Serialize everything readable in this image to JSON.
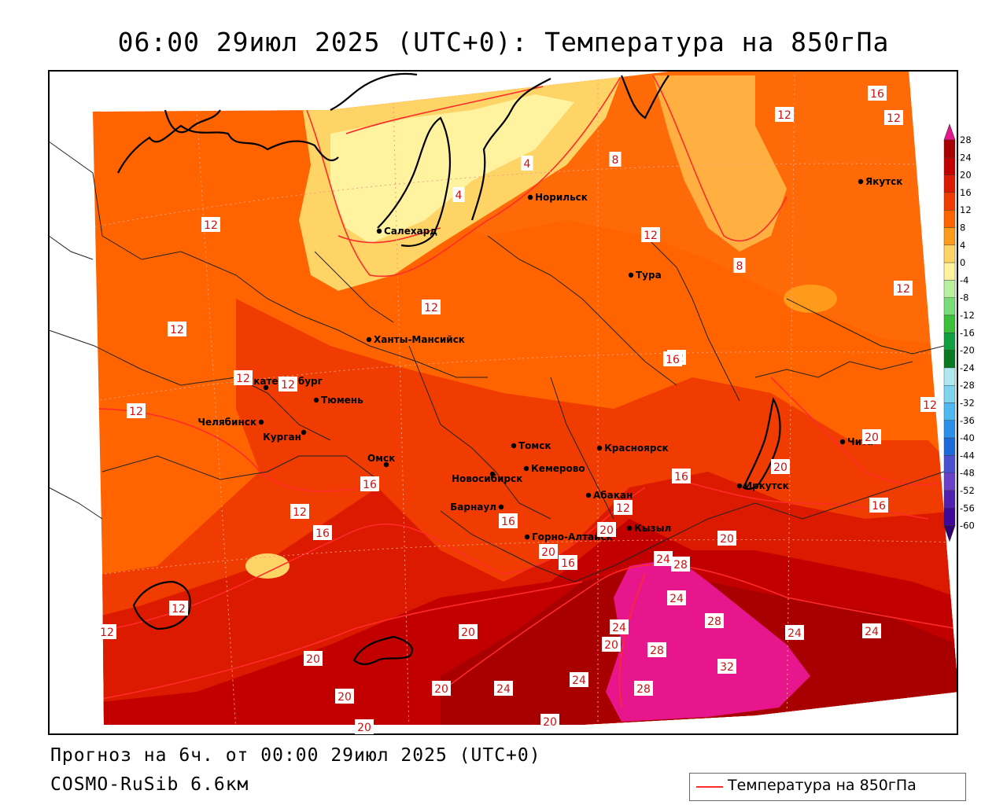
{
  "title": "06:00 29июл 2025 (UTC+0): Температура на 850гПа",
  "footer": {
    "forecast": "Прогноз на 6ч. от 00:00 29июл 2025 (UTC+0)",
    "model": "COSMO-RuSib 6.6км"
  },
  "legend": {
    "line_label": "Температура на 850гПа",
    "line_color": "#ff2a2a"
  },
  "colorbar": {
    "ticks": [
      "28",
      "24",
      "20",
      "16",
      "12",
      "8",
      "4",
      "0",
      "-4",
      "-8",
      "-12",
      "-16",
      "-20",
      "-24",
      "-28",
      "-32",
      "-36",
      "-40",
      "-44",
      "-48",
      "-52",
      "-56",
      "-60"
    ],
    "colors": [
      "#e8168c",
      "#a80000",
      "#c20000",
      "#dc1a00",
      "#f03c00",
      "#ff6400",
      "#ff9a1a",
      "#ffd466",
      "#fff3a0",
      "#b8f0a0",
      "#78dc78",
      "#3cc03c",
      "#10a040",
      "#0a7a20",
      "#b0e8f0",
      "#80d4f0",
      "#50b8f0",
      "#2c90e8",
      "#1c6cd8",
      "#4a50d0",
      "#6a40c8",
      "#5020b0",
      "#400898",
      "#300070"
    ]
  },
  "cities": [
    {
      "name": "Салехард"
    },
    {
      "name": "Норильск"
    },
    {
      "name": "Якутск"
    },
    {
      "name": "Тура"
    },
    {
      "name": "Ханты-Мансийск"
    },
    {
      "name": "Екатеринбург"
    },
    {
      "name": "Тюмень"
    },
    {
      "name": "Челябинск"
    },
    {
      "name": "Курган"
    },
    {
      "name": "Омск"
    },
    {
      "name": "Новосибирск"
    },
    {
      "name": "Томск"
    },
    {
      "name": "Кемерово"
    },
    {
      "name": "Красноярск"
    },
    {
      "name": "Барнаул"
    },
    {
      "name": "Абакан"
    },
    {
      "name": "Горно-Алтайск"
    },
    {
      "name": "Кызыл"
    },
    {
      "name": "Иркутск"
    },
    {
      "name": "Чита"
    }
  ],
  "contour_labels": [
    "16",
    "12",
    "12",
    "4",
    "8",
    "4",
    "12",
    "12",
    "8",
    "12",
    "12",
    "12",
    "12",
    "12",
    "12",
    "12",
    "12",
    "16",
    "16",
    "16",
    "12",
    "16",
    "16",
    "20",
    "20",
    "12",
    "12",
    "16",
    "20",
    "20",
    "20",
    "24",
    "24",
    "20",
    "24",
    "28",
    "24",
    "28",
    "28",
    "24",
    "20",
    "32",
    "20",
    "28",
    "24",
    "20",
    "20",
    "24",
    "20",
    "20",
    "12",
    "16"
  ]
}
